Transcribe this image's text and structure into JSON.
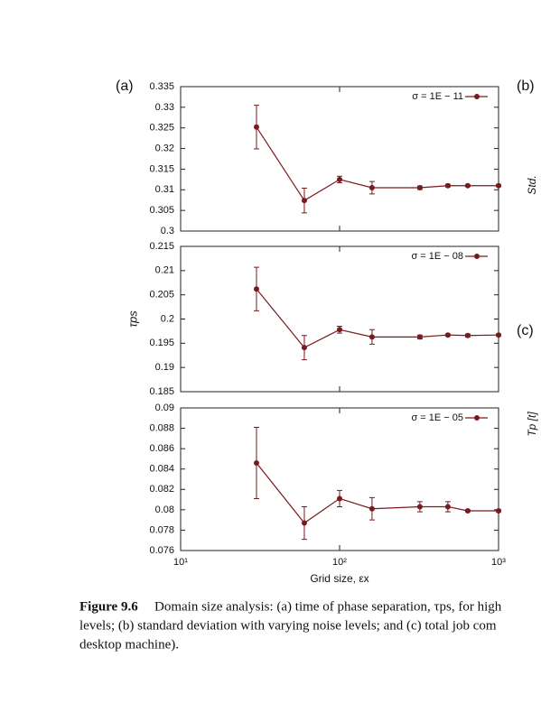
{
  "panel_labels": [
    "(a)",
    "(b)",
    "(c)"
  ],
  "cut_labels": [
    "Std.",
    "Tp [t]"
  ],
  "caption": {
    "figure": "Figure 9.6",
    "lines": [
      "Domain size analysis: (a) time of phase separation, τps, for high",
      "levels; (b) standard deviation with varying noise levels; and (c) total job com",
      "desktop machine)."
    ]
  },
  "chart_data": [
    {
      "type": "line",
      "xscale": "log",
      "legend": "upper right",
      "x": [
        30,
        60,
        100,
        160,
        320,
        480,
        640,
        1000
      ],
      "xlim": [
        10,
        1000
      ],
      "xticks": [
        10,
        100,
        1000
      ],
      "ylim": [
        0.3,
        0.335
      ],
      "yticks": [
        0.3,
        0.305,
        0.31,
        0.315,
        0.32,
        0.325,
        0.33,
        0.335
      ],
      "series": [
        {
          "name": "σ = 1E − 11",
          "color": "#7a1a1e",
          "values": [
            0.3252,
            0.3074,
            0.3125,
            0.3105,
            0.3105,
            0.311,
            0.311,
            0.311
          ],
          "errors": [
            0.0053,
            0.003,
            0.0008,
            0.0015,
            0.0004,
            0.0003,
            0.0002,
            0.0002
          ]
        }
      ]
    },
    {
      "type": "line",
      "xscale": "log",
      "legend": "upper right",
      "ylabel": "τps",
      "x": [
        30,
        60,
        100,
        160,
        320,
        480,
        640,
        1000
      ],
      "xlim": [
        10,
        1000
      ],
      "xticks": [
        10,
        100,
        1000
      ],
      "ylim": [
        0.185,
        0.215
      ],
      "yticks": [
        0.185,
        0.19,
        0.195,
        0.2,
        0.205,
        0.21,
        0.215
      ],
      "series": [
        {
          "name": "σ = 1E − 08",
          "color": "#7a1a1e",
          "values": [
            0.2062,
            0.1941,
            0.1978,
            0.1963,
            0.1963,
            0.1967,
            0.1966,
            0.1967
          ],
          "errors": [
            0.0045,
            0.0025,
            0.0007,
            0.0015,
            0.0004,
            0.0002,
            0.0003,
            0.0002
          ]
        }
      ]
    },
    {
      "type": "line",
      "xscale": "log",
      "legend": "upper right",
      "xlabel": "Grid size, εx",
      "x": [
        30,
        60,
        100,
        160,
        320,
        480,
        640,
        1000
      ],
      "xlim": [
        10,
        1000
      ],
      "xticks": [
        {
          "value": 10,
          "label": "10¹"
        },
        {
          "value": 100,
          "label": "10²"
        },
        {
          "value": 1000,
          "label": "10³"
        }
      ],
      "ylim": [
        0.076,
        0.09
      ],
      "yticks": [
        0.076,
        0.078,
        0.08,
        0.082,
        0.084,
        0.086,
        0.088,
        0.09
      ],
      "series": [
        {
          "name": "σ = 1E − 05",
          "color": "#7a1a1e",
          "values": [
            0.0846,
            0.0787,
            0.0811,
            0.0801,
            0.0803,
            0.0803,
            0.0799,
            0.0799
          ],
          "errors": [
            0.0035,
            0.0016,
            0.0008,
            0.0011,
            0.0005,
            0.0005,
            0.0001,
            0.0001
          ]
        }
      ]
    }
  ]
}
